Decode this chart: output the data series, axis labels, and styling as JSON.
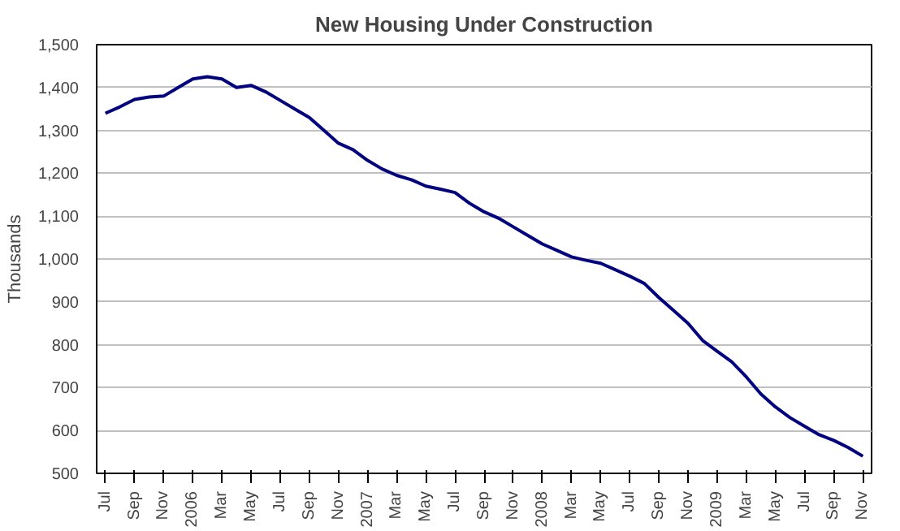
{
  "chart_data": {
    "type": "line",
    "title": "New Housing Under Construction",
    "ylabel": "Thousands",
    "categories": [
      "Jul",
      null,
      "Sep",
      null,
      "Nov",
      null,
      "2006",
      null,
      "Mar",
      null,
      "May",
      null,
      "Jul",
      null,
      "Sep",
      null,
      "Nov",
      null,
      "2007",
      null,
      "Mar",
      null,
      "May",
      null,
      "Jul",
      null,
      "Sep",
      null,
      "Nov",
      null,
      "2008",
      null,
      "Mar",
      null,
      "May",
      null,
      "Jul",
      null,
      "Sep",
      null,
      "Nov",
      null,
      "2009",
      null,
      "Mar",
      null,
      "May",
      null,
      "Jul",
      null,
      "Sep",
      null,
      "Nov"
    ],
    "series": [
      {
        "color": "#000080",
        "values": [
          1340,
          1355,
          1372,
          1378,
          1380,
          1400,
          1420,
          1425,
          1420,
          1400,
          1405,
          1390,
          1370,
          1350,
          1330,
          1300,
          1270,
          1255,
          1230,
          1210,
          1195,
          1185,
          1170,
          1163,
          1155,
          1130,
          1110,
          1095,
          1075,
          1055,
          1035,
          1020,
          1005,
          997,
          990,
          975,
          960,
          943,
          910,
          880,
          850,
          810,
          785,
          760,
          725,
          685,
          655,
          630,
          610,
          590,
          577,
          560,
          540
        ]
      }
    ],
    "ylim": [
      500,
      1500
    ],
    "yticks": [
      500,
      600,
      700,
      800,
      900,
      {
        "value": 1000,
        "label": "1,000"
      },
      {
        "value": 1100,
        "label": "1,100"
      },
      {
        "value": 1200,
        "label": "1,200"
      },
      {
        "value": 1300,
        "label": "1,300"
      },
      {
        "value": 1400,
        "label": "1,400"
      },
      {
        "value": 1500,
        "label": "1,500"
      }
    ],
    "grid": "y",
    "marker": "none",
    "line_style": "solid"
  }
}
